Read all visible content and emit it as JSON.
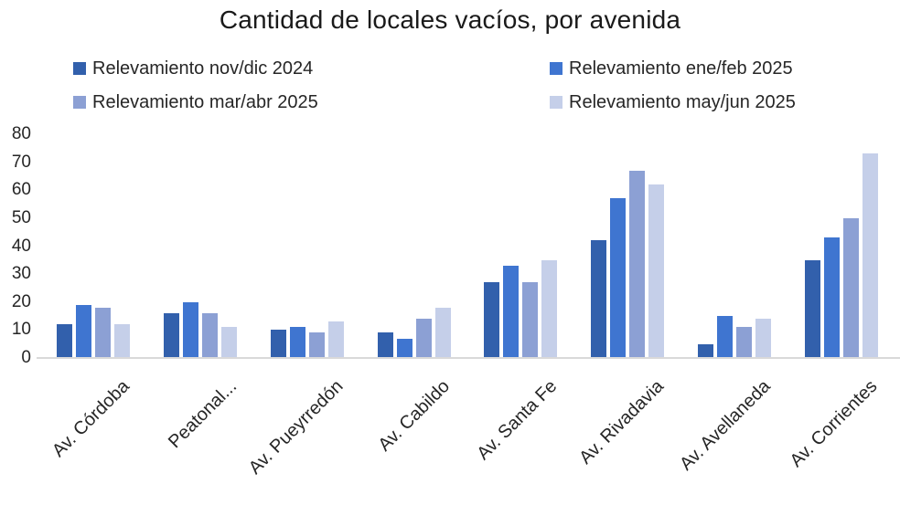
{
  "chart_data": {
    "type": "bar",
    "title": "Cantidad de locales vacíos, por avenida",
    "xlabel": "",
    "ylabel": "",
    "ylim": [
      0,
      80
    ],
    "y_ticks": [
      0,
      10,
      20,
      30,
      40,
      50,
      60,
      70,
      80
    ],
    "grid": false,
    "legend_position": "top",
    "categories": [
      "Av. Córdoba",
      "Peatonal...",
      "Av. Pueyrredón",
      "Av. Cabildo",
      "Av. Santa Fe",
      "Av. Rivadavia",
      "Av. Avellaneda",
      "Av. Corrientes"
    ],
    "series": [
      {
        "name": "Relevamiento nov/dic 2024",
        "color": "#3260ac",
        "values": [
          12,
          16,
          10,
          9,
          27,
          42,
          5,
          35
        ]
      },
      {
        "name": "Relevamiento ene/feb 2025",
        "color": "#3f75d0",
        "values": [
          19,
          20,
          11,
          7,
          33,
          57,
          15,
          43
        ]
      },
      {
        "name": "Relevamiento mar/abr 2025",
        "color": "#8ca0d4",
        "values": [
          18,
          16,
          9,
          14,
          27,
          67,
          11,
          50
        ]
      },
      {
        "name": "Relevamiento may/jun 2025",
        "color": "#c5cfe9",
        "values": [
          12,
          11,
          13,
          18,
          35,
          62,
          14,
          73
        ]
      }
    ]
  },
  "colors": {
    "axis_line": "#d9d9d9",
    "text": "#262626"
  }
}
